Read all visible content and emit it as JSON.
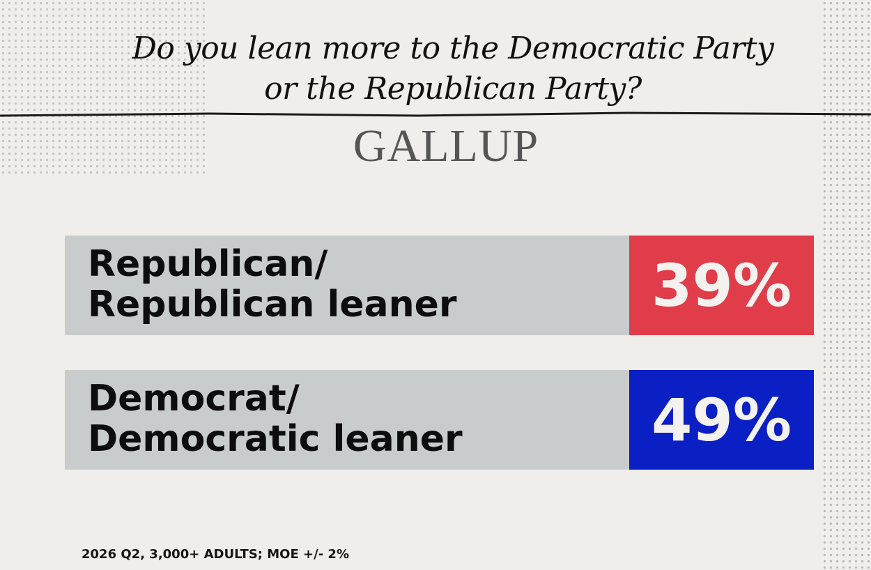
{
  "title": {
    "lines": [
      "Do you lean more to the Democratic Party",
      "or the Republican Party?"
    ]
  },
  "logo": "GALLUP",
  "rows": [
    {
      "label": [
        "Republican/",
        "Republican leaner"
      ],
      "value": "39%"
    },
    {
      "label": [
        "Democrat/",
        "Democratic leaner"
      ],
      "value": "49%"
    }
  ],
  "footnote": "2026 Q2, 3,000+ ADULTS; MOE +/- 2%"
}
